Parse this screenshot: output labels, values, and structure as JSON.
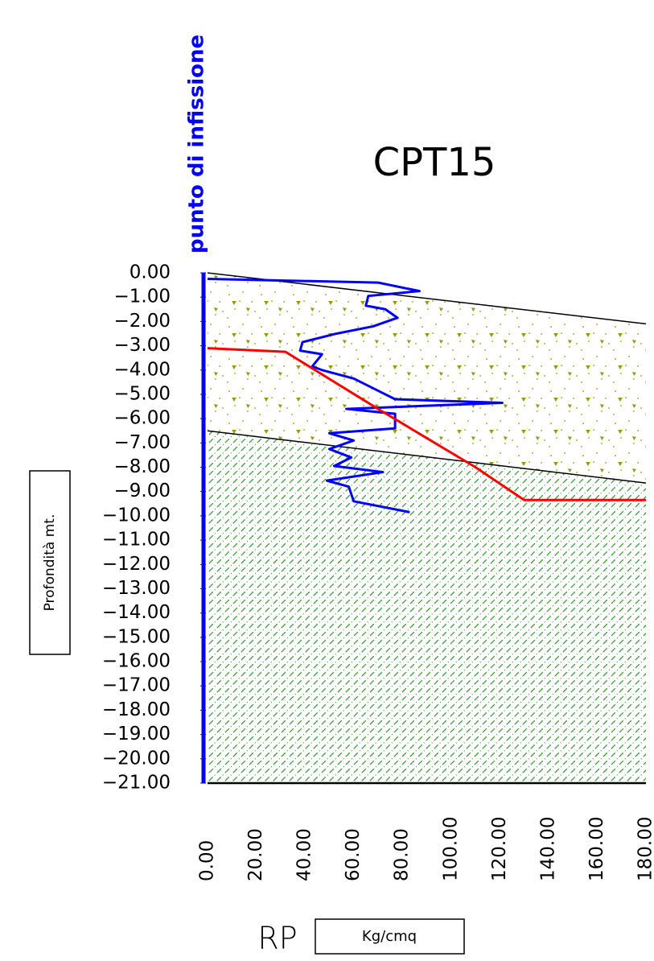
{
  "chart_data": {
    "type": "line",
    "title": "CPT15",
    "annotation": "punto di infissione",
    "y_label": "Profondità mt.",
    "x_label": "RP",
    "x_unit": "Kg/cmq",
    "xlim": [
      0,
      180
    ],
    "ylim": [
      -21,
      0
    ],
    "xticks": [
      {
        "value": 0,
        "label": "0.00"
      },
      {
        "value": 20,
        "label": "20.00"
      },
      {
        "value": 40,
        "label": "40.00"
      },
      {
        "value": 60,
        "label": "60.00"
      },
      {
        "value": 80,
        "label": "80.00"
      },
      {
        "value": 100,
        "label": "100.00"
      },
      {
        "value": 120,
        "label": "120.00"
      },
      {
        "value": 140,
        "label": "140.00"
      },
      {
        "value": 160,
        "label": "160.00"
      },
      {
        "value": 180,
        "label": "180.00"
      }
    ],
    "yticks": [
      {
        "value": 0,
        "label": "0.00"
      },
      {
        "value": -1,
        "label": "−1.00"
      },
      {
        "value": -2,
        "label": "−2.00"
      },
      {
        "value": -3,
        "label": "−3.00"
      },
      {
        "value": -4,
        "label": "−4.00"
      },
      {
        "value": -5,
        "label": "−5.00"
      },
      {
        "value": -6,
        "label": "−6.00"
      },
      {
        "value": -7,
        "label": "−7.00"
      },
      {
        "value": -8,
        "label": "−8.00"
      },
      {
        "value": -9,
        "label": "−9.00"
      },
      {
        "value": -10,
        "label": "−10.00"
      },
      {
        "value": -11,
        "label": "−11.00"
      },
      {
        "value": -12,
        "label": "−12.00"
      },
      {
        "value": -13,
        "label": "−13.00"
      },
      {
        "value": -14,
        "label": "−14.00"
      },
      {
        "value": -15,
        "label": "−15.00"
      },
      {
        "value": -16,
        "label": "−16.00"
      },
      {
        "value": -17,
        "label": "−17.00"
      },
      {
        "value": -18,
        "label": "−18.00"
      },
      {
        "value": -19,
        "label": "−19.00"
      },
      {
        "value": -20,
        "label": "−20.00"
      },
      {
        "value": -21,
        "label": "−21.00"
      }
    ],
    "layers": [
      {
        "color": "#9a9a10",
        "x": [
          0,
          180
        ],
        "values": [
          0,
          -2.1
        ]
      },
      {
        "color": "#3f9a3f",
        "x": [
          0,
          180
        ],
        "values": [
          -6.5,
          -8.65
        ]
      }
    ],
    "series": [
      {
        "color": "#0000ff",
        "x": [
          0,
          70,
          87,
          66,
          65,
          73,
          78,
          68,
          53,
          39,
          38,
          47,
          43,
          47,
          60,
          73,
          77,
          121,
          57,
          77,
          77,
          50,
          60,
          50,
          59,
          52,
          72,
          49,
          58,
          60,
          83
        ],
        "values": [
          -0.25,
          -0.4,
          -0.75,
          -0.95,
          -1.35,
          -1.5,
          -1.85,
          -2.2,
          -2.5,
          -2.85,
          -3.2,
          -3.35,
          -3.85,
          -4.0,
          -4.35,
          -5.0,
          -5.2,
          -5.35,
          -5.6,
          -5.8,
          -6.4,
          -6.6,
          -6.9,
          -7.25,
          -7.6,
          -7.95,
          -8.2,
          -8.55,
          -8.8,
          -9.4,
          -9.85
        ]
      },
      {
        "color": "#ff0000",
        "x": [
          0,
          32,
          70,
          110,
          130,
          180
        ],
        "values": [
          -3.1,
          -3.25,
          -5.6,
          -8.0,
          -9.35,
          -9.35
        ]
      }
    ]
  }
}
